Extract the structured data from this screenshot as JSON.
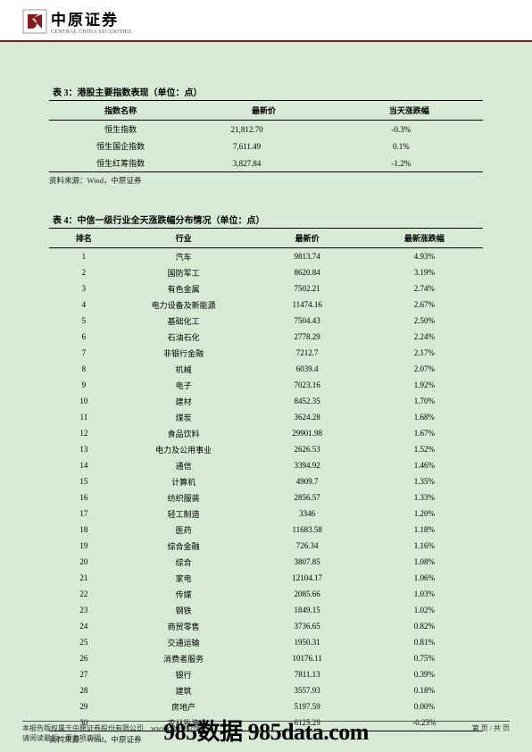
{
  "header": {
    "logo_main": "中原证券",
    "logo_sub": "CENTRAL CHINA SECURITIES"
  },
  "table3": {
    "title": "表 3：港股主要指数表现（单位：点）",
    "headers": [
      "指数名称",
      "最新价",
      "当天涨跌幅"
    ],
    "rows": [
      [
        "恒生指数",
        "21,812.70",
        "-0.3%"
      ],
      [
        "恒生国企指数",
        "7,611.49",
        "0.1%"
      ],
      [
        "恒生红筹指数",
        "3,827.84",
        "-1.2%"
      ]
    ],
    "source": "资料来源：Wind，中原证券"
  },
  "table4": {
    "title": "表 4：中信一级行业全天涨跌幅分布情况（单位：点）",
    "headers": [
      "排名",
      "行业",
      "最新价",
      "最新涨跌幅"
    ],
    "rows": [
      [
        "1",
        "汽车",
        "9813.74",
        "4.93%"
      ],
      [
        "2",
        "国防军工",
        "8620.84",
        "3.19%"
      ],
      [
        "3",
        "有色金属",
        "7502.21",
        "2.74%"
      ],
      [
        "4",
        "电力设备及新能源",
        "11474.16",
        "2.67%"
      ],
      [
        "5",
        "基础化工",
        "7504.43",
        "2.50%"
      ],
      [
        "6",
        "石油石化",
        "2778.29",
        "2.24%"
      ],
      [
        "7",
        "非银行金融",
        "7212.7",
        "2.17%"
      ],
      [
        "8",
        "机械",
        "6039.4",
        "2.07%"
      ],
      [
        "9",
        "电子",
        "7023.16",
        "1.92%"
      ],
      [
        "10",
        "建材",
        "8452.35",
        "1.70%"
      ],
      [
        "11",
        "煤炭",
        "3624.28",
        "1.68%"
      ],
      [
        "12",
        "食品饮料",
        "29901.98",
        "1.67%"
      ],
      [
        "13",
        "电力及公用事业",
        "2626.53",
        "1.52%"
      ],
      [
        "14",
        "通信",
        "3394.92",
        "1.46%"
      ],
      [
        "15",
        "计算机",
        "4909.7",
        "1.35%"
      ],
      [
        "16",
        "纺织服装",
        "2856.57",
        "1.33%"
      ],
      [
        "17",
        "轻工制造",
        "3346",
        "1.20%"
      ],
      [
        "18",
        "医药",
        "11683.58",
        "1.18%"
      ],
      [
        "19",
        "综合金融",
        "726.34",
        "1.16%"
      ],
      [
        "20",
        "综合",
        "3807.85",
        "1.08%"
      ],
      [
        "21",
        "家电",
        "12104.17",
        "1.06%"
      ],
      [
        "22",
        "传媒",
        "2085.66",
        "1.03%"
      ],
      [
        "23",
        "钢铁",
        "1849.15",
        "1.02%"
      ],
      [
        "24",
        "商贸零售",
        "3736.65",
        "0.82%"
      ],
      [
        "25",
        "交通运输",
        "1950.31",
        "0.81%"
      ],
      [
        "26",
        "消费者服务",
        "10176.11",
        "0.75%"
      ],
      [
        "27",
        "银行",
        "7811.13",
        "0.39%"
      ],
      [
        "28",
        "建筑",
        "3557.93",
        "0.18%"
      ],
      [
        "29",
        "房地产",
        "5197.59",
        "0.00%"
      ],
      [
        "30",
        "农林牧渔",
        "6125.29",
        "-0.23%"
      ]
    ],
    "source": "资料来源：Wind，中原证券"
  },
  "footer": {
    "line1": "本报告版权属于中原证券股份有限公司　www.ccnews.com",
    "line2": "请阅读最后一页各项声明",
    "page": "第 页 / 共 页"
  },
  "watermark": "985数据 985data.com",
  "colors": {
    "background": "#d6ead6",
    "header_divider": "#8b1a1a",
    "logo_red": "#8b1a1a"
  }
}
